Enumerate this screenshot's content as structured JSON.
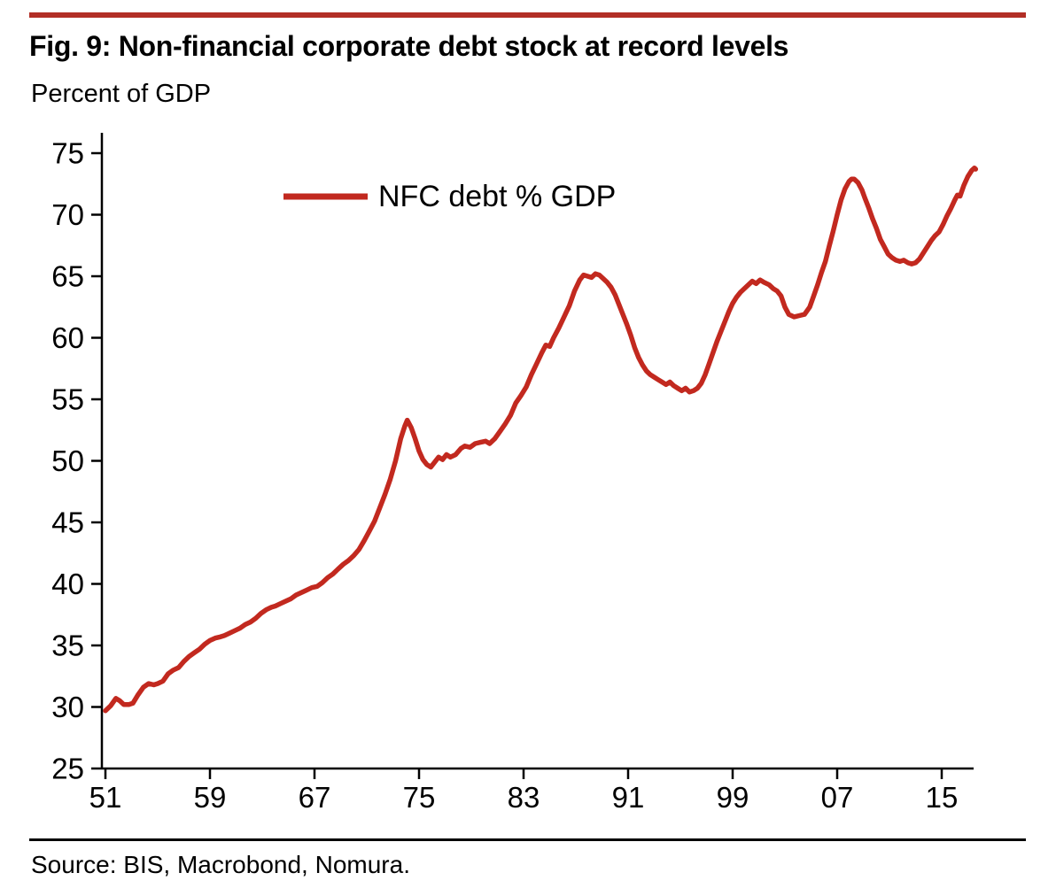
{
  "header": {
    "title": "Fig. 9: Non-financial corporate debt stock at record levels",
    "subtitle": "Percent of GDP",
    "rule_color": "#B22E26"
  },
  "footer": {
    "source": "Source: BIS, Macrobond, Nomura."
  },
  "chart_data": {
    "type": "line",
    "title": "Fig. 9: Non-financial corporate debt stock at record levels",
    "ylabel": "Percent of GDP",
    "xlabel": "",
    "grid": false,
    "legend_position": "upper-left-inside",
    "ylim": [
      25,
      75
    ],
    "xlim": [
      1950.7,
      2018.3
    ],
    "y_ticks": [
      25,
      30,
      35,
      40,
      45,
      50,
      55,
      60,
      65,
      70,
      75
    ],
    "x_tick_labels": [
      "51",
      "59",
      "67",
      "75",
      "83",
      "91",
      "99",
      "07",
      "15"
    ],
    "x_tick_years": [
      1951,
      1959,
      1967,
      1975,
      1983,
      1991,
      1999,
      2007,
      2015
    ],
    "axis_color": "#000000",
    "series": [
      {
        "name": "NFC debt % GDP",
        "color": "#C2291F",
        "points": [
          [
            1951.0,
            29.7
          ],
          [
            1951.4,
            30.1
          ],
          [
            1951.8,
            30.7
          ],
          [
            1952.1,
            30.5
          ],
          [
            1952.4,
            30.2
          ],
          [
            1952.8,
            30.2
          ],
          [
            1953.1,
            30.3
          ],
          [
            1953.5,
            31.0
          ],
          [
            1953.9,
            31.6
          ],
          [
            1954.3,
            31.9
          ],
          [
            1954.7,
            31.8
          ],
          [
            1955.0,
            31.9
          ],
          [
            1955.4,
            32.1
          ],
          [
            1955.8,
            32.7
          ],
          [
            1956.2,
            33.0
          ],
          [
            1956.6,
            33.2
          ],
          [
            1957.0,
            33.7
          ],
          [
            1957.4,
            34.1
          ],
          [
            1957.8,
            34.4
          ],
          [
            1958.2,
            34.7
          ],
          [
            1958.6,
            35.1
          ],
          [
            1959.0,
            35.4
          ],
          [
            1959.4,
            35.6
          ],
          [
            1959.8,
            35.7
          ],
          [
            1960.1,
            35.8
          ],
          [
            1960.5,
            36.0
          ],
          [
            1960.9,
            36.2
          ],
          [
            1961.3,
            36.4
          ],
          [
            1961.7,
            36.7
          ],
          [
            1962.1,
            36.9
          ],
          [
            1962.5,
            37.2
          ],
          [
            1962.9,
            37.6
          ],
          [
            1963.3,
            37.9
          ],
          [
            1963.7,
            38.1
          ],
          [
            1964.0,
            38.2
          ],
          [
            1964.4,
            38.4
          ],
          [
            1964.8,
            38.6
          ],
          [
            1965.2,
            38.8
          ],
          [
            1965.6,
            39.1
          ],
          [
            1966.0,
            39.3
          ],
          [
            1966.4,
            39.5
          ],
          [
            1966.8,
            39.7
          ],
          [
            1967.2,
            39.8
          ],
          [
            1967.6,
            40.1
          ],
          [
            1968.0,
            40.5
          ],
          [
            1968.4,
            40.8
          ],
          [
            1968.8,
            41.2
          ],
          [
            1969.2,
            41.6
          ],
          [
            1969.6,
            41.9
          ],
          [
            1970.0,
            42.3
          ],
          [
            1970.4,
            42.8
          ],
          [
            1970.8,
            43.5
          ],
          [
            1971.2,
            44.3
          ],
          [
            1971.6,
            45.1
          ],
          [
            1972.0,
            46.2
          ],
          [
            1972.4,
            47.3
          ],
          [
            1972.8,
            48.5
          ],
          [
            1973.2,
            50.0
          ],
          [
            1973.6,
            51.8
          ],
          [
            1973.9,
            52.8
          ],
          [
            1974.1,
            53.3
          ],
          [
            1974.4,
            52.7
          ],
          [
            1974.7,
            51.8
          ],
          [
            1975.0,
            50.8
          ],
          [
            1975.3,
            50.1
          ],
          [
            1975.6,
            49.7
          ],
          [
            1975.9,
            49.5
          ],
          [
            1976.2,
            49.9
          ],
          [
            1976.5,
            50.3
          ],
          [
            1976.8,
            50.1
          ],
          [
            1977.1,
            50.5
          ],
          [
            1977.4,
            50.3
          ],
          [
            1977.8,
            50.5
          ],
          [
            1978.2,
            51.0
          ],
          [
            1978.5,
            51.2
          ],
          [
            1978.9,
            51.1
          ],
          [
            1979.3,
            51.4
          ],
          [
            1979.7,
            51.5
          ],
          [
            1980.1,
            51.6
          ],
          [
            1980.4,
            51.4
          ],
          [
            1980.8,
            51.8
          ],
          [
            1981.2,
            52.4
          ],
          [
            1981.6,
            53.0
          ],
          [
            1982.0,
            53.7
          ],
          [
            1982.4,
            54.7
          ],
          [
            1982.8,
            55.3
          ],
          [
            1983.2,
            56.0
          ],
          [
            1983.6,
            57.0
          ],
          [
            1984.0,
            57.9
          ],
          [
            1984.4,
            58.8
          ],
          [
            1984.7,
            59.4
          ],
          [
            1985.0,
            59.3
          ],
          [
            1985.3,
            60.0
          ],
          [
            1985.7,
            60.8
          ],
          [
            1986.1,
            61.7
          ],
          [
            1986.5,
            62.6
          ],
          [
            1986.9,
            63.8
          ],
          [
            1987.3,
            64.7
          ],
          [
            1987.6,
            65.1
          ],
          [
            1987.9,
            65.0
          ],
          [
            1988.2,
            64.9
          ],
          [
            1988.5,
            65.2
          ],
          [
            1988.8,
            65.1
          ],
          [
            1989.1,
            64.8
          ],
          [
            1989.4,
            64.5
          ],
          [
            1989.7,
            64.1
          ],
          [
            1990.0,
            63.5
          ],
          [
            1990.3,
            62.7
          ],
          [
            1990.6,
            61.9
          ],
          [
            1990.9,
            61.1
          ],
          [
            1991.2,
            60.2
          ],
          [
            1991.5,
            59.2
          ],
          [
            1991.8,
            58.4
          ],
          [
            1992.1,
            57.8
          ],
          [
            1992.4,
            57.3
          ],
          [
            1992.7,
            57.0
          ],
          [
            1993.0,
            56.8
          ],
          [
            1993.3,
            56.6
          ],
          [
            1993.6,
            56.4
          ],
          [
            1993.9,
            56.2
          ],
          [
            1994.2,
            56.4
          ],
          [
            1994.5,
            56.1
          ],
          [
            1994.8,
            55.9
          ],
          [
            1995.1,
            55.7
          ],
          [
            1995.4,
            55.9
          ],
          [
            1995.7,
            55.6
          ],
          [
            1996.0,
            55.7
          ],
          [
            1996.3,
            55.9
          ],
          [
            1996.6,
            56.3
          ],
          [
            1996.9,
            57.0
          ],
          [
            1997.2,
            57.9
          ],
          [
            1997.5,
            58.8
          ],
          [
            1997.8,
            59.7
          ],
          [
            1998.1,
            60.5
          ],
          [
            1998.4,
            61.3
          ],
          [
            1998.7,
            62.1
          ],
          [
            1999.0,
            62.8
          ],
          [
            1999.3,
            63.3
          ],
          [
            1999.6,
            63.7
          ],
          [
            1999.9,
            64.0
          ],
          [
            2000.2,
            64.3
          ],
          [
            2000.5,
            64.6
          ],
          [
            2000.8,
            64.4
          ],
          [
            2001.1,
            64.7
          ],
          [
            2001.4,
            64.5
          ],
          [
            2001.8,
            64.3
          ],
          [
            2002.1,
            64.0
          ],
          [
            2002.4,
            63.8
          ],
          [
            2002.7,
            63.4
          ],
          [
            2003.0,
            62.5
          ],
          [
            2003.3,
            61.9
          ],
          [
            2003.7,
            61.7
          ],
          [
            2004.1,
            61.8
          ],
          [
            2004.5,
            61.9
          ],
          [
            2004.9,
            62.5
          ],
          [
            2005.2,
            63.4
          ],
          [
            2005.5,
            64.3
          ],
          [
            2005.8,
            65.3
          ],
          [
            2006.1,
            66.2
          ],
          [
            2006.4,
            67.5
          ],
          [
            2006.7,
            68.7
          ],
          [
            2007.0,
            70.0
          ],
          [
            2007.3,
            71.2
          ],
          [
            2007.6,
            72.1
          ],
          [
            2007.9,
            72.7
          ],
          [
            2008.1,
            72.9
          ],
          [
            2008.3,
            72.9
          ],
          [
            2008.6,
            72.6
          ],
          [
            2008.9,
            72.0
          ],
          [
            2009.1,
            71.4
          ],
          [
            2009.4,
            70.6
          ],
          [
            2009.7,
            69.7
          ],
          [
            2010.0,
            68.9
          ],
          [
            2010.3,
            68.0
          ],
          [
            2010.6,
            67.4
          ],
          [
            2010.9,
            66.8
          ],
          [
            2011.2,
            66.5
          ],
          [
            2011.5,
            66.3
          ],
          [
            2011.8,
            66.2
          ],
          [
            2012.1,
            66.3
          ],
          [
            2012.4,
            66.1
          ],
          [
            2012.7,
            66.0
          ],
          [
            2013.0,
            66.1
          ],
          [
            2013.3,
            66.4
          ],
          [
            2013.6,
            66.9
          ],
          [
            2013.9,
            67.4
          ],
          [
            2014.2,
            67.9
          ],
          [
            2014.5,
            68.3
          ],
          [
            2014.8,
            68.6
          ],
          [
            2015.1,
            69.2
          ],
          [
            2015.4,
            69.9
          ],
          [
            2015.7,
            70.5
          ],
          [
            2016.0,
            71.2
          ],
          [
            2016.2,
            71.6
          ],
          [
            2016.4,
            71.5
          ],
          [
            2016.7,
            72.4
          ],
          [
            2017.0,
            73.1
          ],
          [
            2017.3,
            73.6
          ],
          [
            2017.5,
            73.8
          ],
          [
            2017.6,
            73.7
          ]
        ]
      }
    ]
  }
}
